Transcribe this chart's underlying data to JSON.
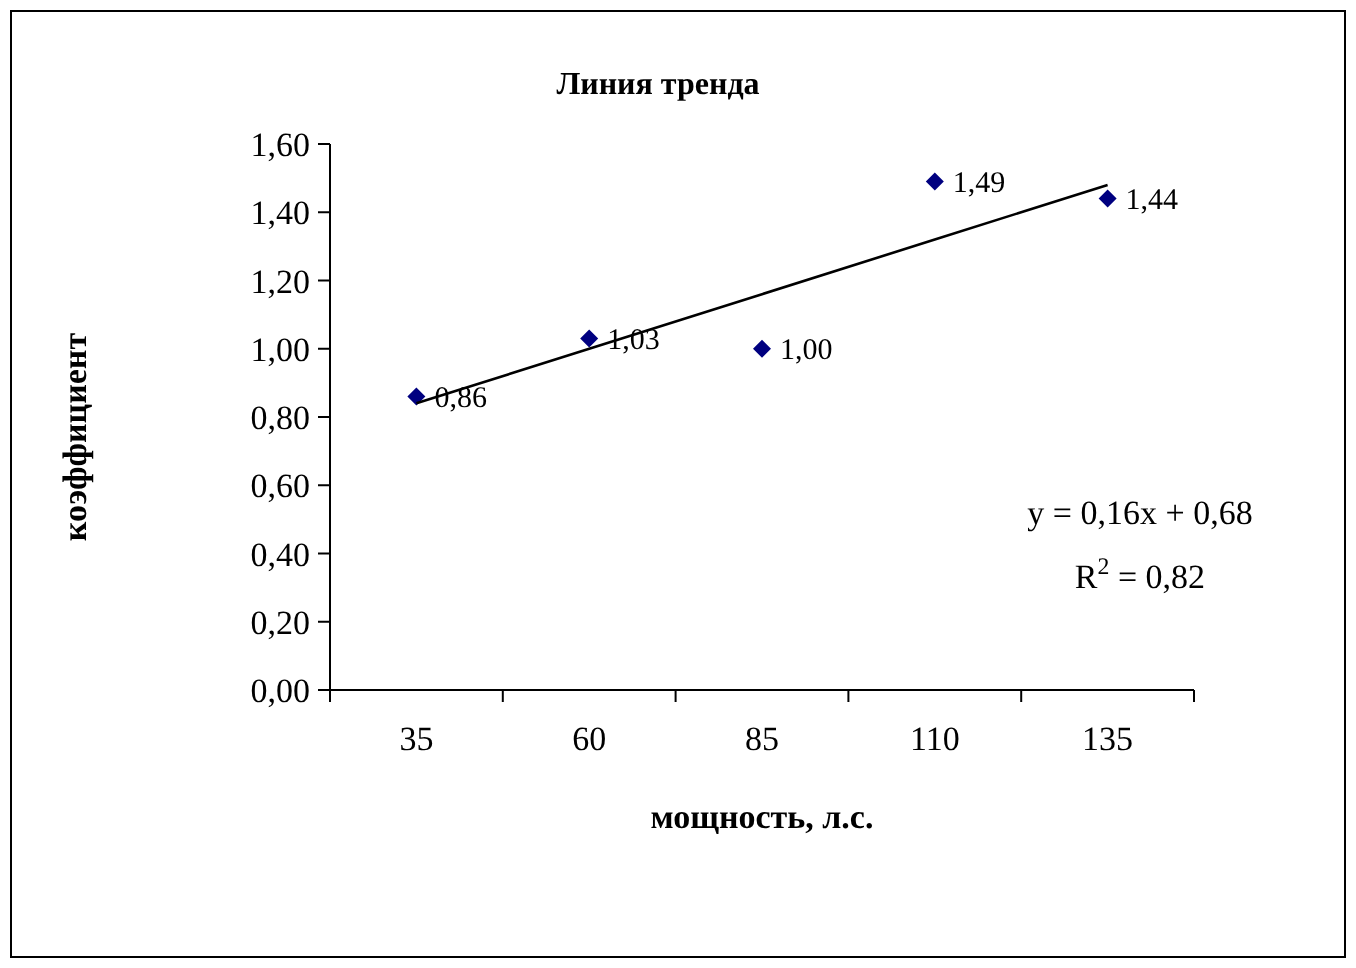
{
  "chart_data": {
    "type": "scatter",
    "title": "Линия тренда",
    "xlabel": "мощность, л.с.",
    "ylabel": "коэффициент",
    "categories": [
      "35",
      "60",
      "85",
      "110",
      "135"
    ],
    "ylim": [
      0,
      1.6
    ],
    "yticks": [
      {
        "value": 0,
        "label": "0,00"
      },
      {
        "value": 0.2,
        "label": "0,20"
      },
      {
        "value": 0.4,
        "label": "0,40"
      },
      {
        "value": 0.6,
        "label": "0,60"
      },
      {
        "value": 0.8,
        "label": "0,80"
      },
      {
        "value": 1,
        "label": "1,00"
      },
      {
        "value": 1.2,
        "label": "1,20"
      },
      {
        "value": 1.4,
        "label": "1,40"
      },
      {
        "value": 1.6,
        "label": "1,60"
      }
    ],
    "series": [
      {
        "color": "#000080",
        "marker": "diamond",
        "values": [
          0.86,
          1.03,
          1.0,
          1.49,
          1.44
        ],
        "value_labels": [
          "0,86",
          "1,03",
          "1,00",
          "1,49",
          "1,44"
        ]
      },
      {
        "type": "line",
        "color": "#000000",
        "marker": "none",
        "values": [
          0.84,
          1.0,
          1.16,
          1.32,
          1.48
        ]
      }
    ],
    "annotations": [
      "y = 0,16x + 0,68",
      "R$^{2}$ = 0,82"
    ]
  }
}
